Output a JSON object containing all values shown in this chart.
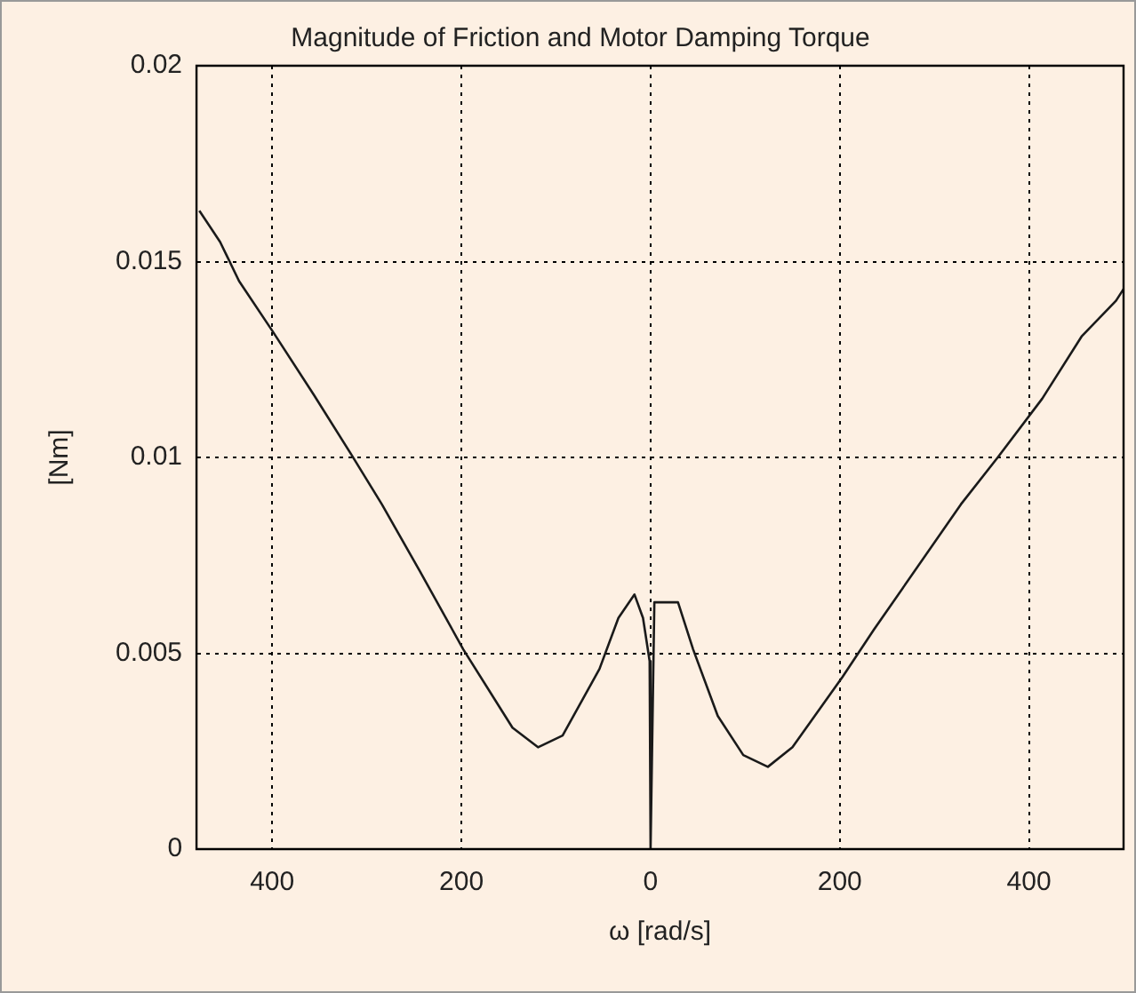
{
  "chart_data": {
    "type": "line",
    "title": "Magnitude of Friction and Motor Damping Torque",
    "xlabel": "ω [rad/s]",
    "ylabel": "[Nm]",
    "xlim": [
      -480,
      500
    ],
    "xticks": [
      {
        "value": -400,
        "label": "400"
      },
      {
        "value": -200,
        "label": "200"
      },
      0,
      200,
      400
    ],
    "ylim": [
      0,
      0.02
    ],
    "yticks": [
      0,
      0.005,
      0.01,
      0.015,
      0.02
    ],
    "grid": true,
    "marker": "none",
    "line_style": "solid",
    "series": [
      {
        "color": "#1a1a1a",
        "x": [
          -477,
          -455,
          -435,
          -399,
          -356,
          -317,
          -284,
          -244,
          -198,
          -146,
          -119,
          -93,
          -54,
          -34,
          -17,
          -8,
          -1,
          0,
          4,
          12,
          29,
          45,
          71,
          98,
          124,
          150,
          203,
          236,
          328,
          367,
          414,
          456,
          492,
          500
        ],
        "values": [
          0.0163,
          0.0155,
          0.0145,
          0.0132,
          0.0116,
          0.0101,
          0.0088,
          0.0071,
          0.0051,
          0.0031,
          0.0026,
          0.0029,
          0.0046,
          0.0059,
          0.0065,
          0.0059,
          0.0048,
          0,
          0.0063,
          0.0063,
          0.0063,
          0.0051,
          0.0034,
          0.0024,
          0.0021,
          0.0026,
          0.0044,
          0.0056,
          0.0088,
          0.01,
          0.0115,
          0.0131,
          0.014,
          0.0143
        ]
      }
    ]
  }
}
